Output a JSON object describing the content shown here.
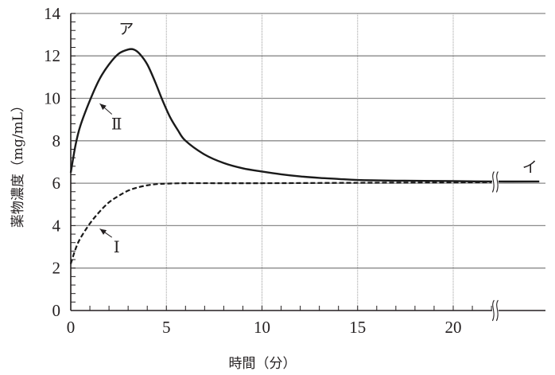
{
  "chart_data": {
    "type": "line",
    "title": "",
    "xlabel": "時間（分）",
    "ylabel": "薬物濃度（mg/mL）",
    "xlim": [
      0,
      24.5
    ],
    "ylim": [
      0,
      14
    ],
    "x_ticks": [
      0,
      5,
      10,
      15,
      20
    ],
    "x_tick_labels": [
      "0",
      "5",
      "10",
      "15",
      "20"
    ],
    "x_minor_tick_step": 1,
    "y_ticks": [
      0,
      2,
      4,
      6,
      8,
      10,
      12,
      14
    ],
    "y_tick_labels": [
      "0",
      "2",
      "4",
      "6",
      "8",
      "10",
      "12",
      "14"
    ],
    "y_minor_tick_step": 0.4,
    "grid": true,
    "axis_break_at_x": 22.2,
    "series": [
      {
        "name": "Ⅱ",
        "style": "solid",
        "x": [
          0,
          0.25,
          0.5,
          1,
          1.5,
          2,
          2.5,
          3,
          3.3,
          3.6,
          4,
          4.4,
          4.8,
          5.2,
          5.6,
          6,
          7,
          8,
          9,
          10,
          11,
          12,
          13,
          14,
          15,
          17,
          20,
          22,
          24.5
        ],
        "y": [
          6.5,
          7.8,
          8.7,
          9.9,
          10.9,
          11.6,
          12.1,
          12.3,
          12.3,
          12.1,
          11.6,
          10.8,
          9.9,
          9.1,
          8.5,
          8.0,
          7.35,
          6.95,
          6.7,
          6.55,
          6.42,
          6.32,
          6.25,
          6.2,
          6.15,
          6.12,
          6.1,
          6.08,
          6.08
        ]
      },
      {
        "name": "Ⅰ",
        "style": "dashed",
        "x": [
          0,
          0.25,
          0.5,
          1,
          1.5,
          2,
          2.5,
          3,
          3.5,
          4,
          4.5,
          5,
          6,
          8,
          10,
          15,
          20,
          22
        ],
        "y": [
          2.2,
          2.9,
          3.4,
          4.1,
          4.65,
          5.1,
          5.4,
          5.65,
          5.8,
          5.9,
          5.96,
          5.98,
          6.0,
          6.0,
          6.0,
          6.02,
          6.04,
          6.05
        ]
      }
    ],
    "annotations": [
      {
        "text": "ア",
        "x": 2.9,
        "y": 13.3,
        "note": "peak of curve Ⅱ"
      },
      {
        "text": "イ",
        "x": 24.0,
        "y": 6.8,
        "note": "steady-state level"
      },
      {
        "text": "Ⅱ",
        "x": 2.4,
        "y": 8.8,
        "arrow_to": [
          1.35,
          9.9
        ]
      },
      {
        "text": "Ⅰ",
        "x": 2.4,
        "y": 3.0,
        "arrow_to": [
          1.35,
          4.0
        ]
      }
    ]
  }
}
